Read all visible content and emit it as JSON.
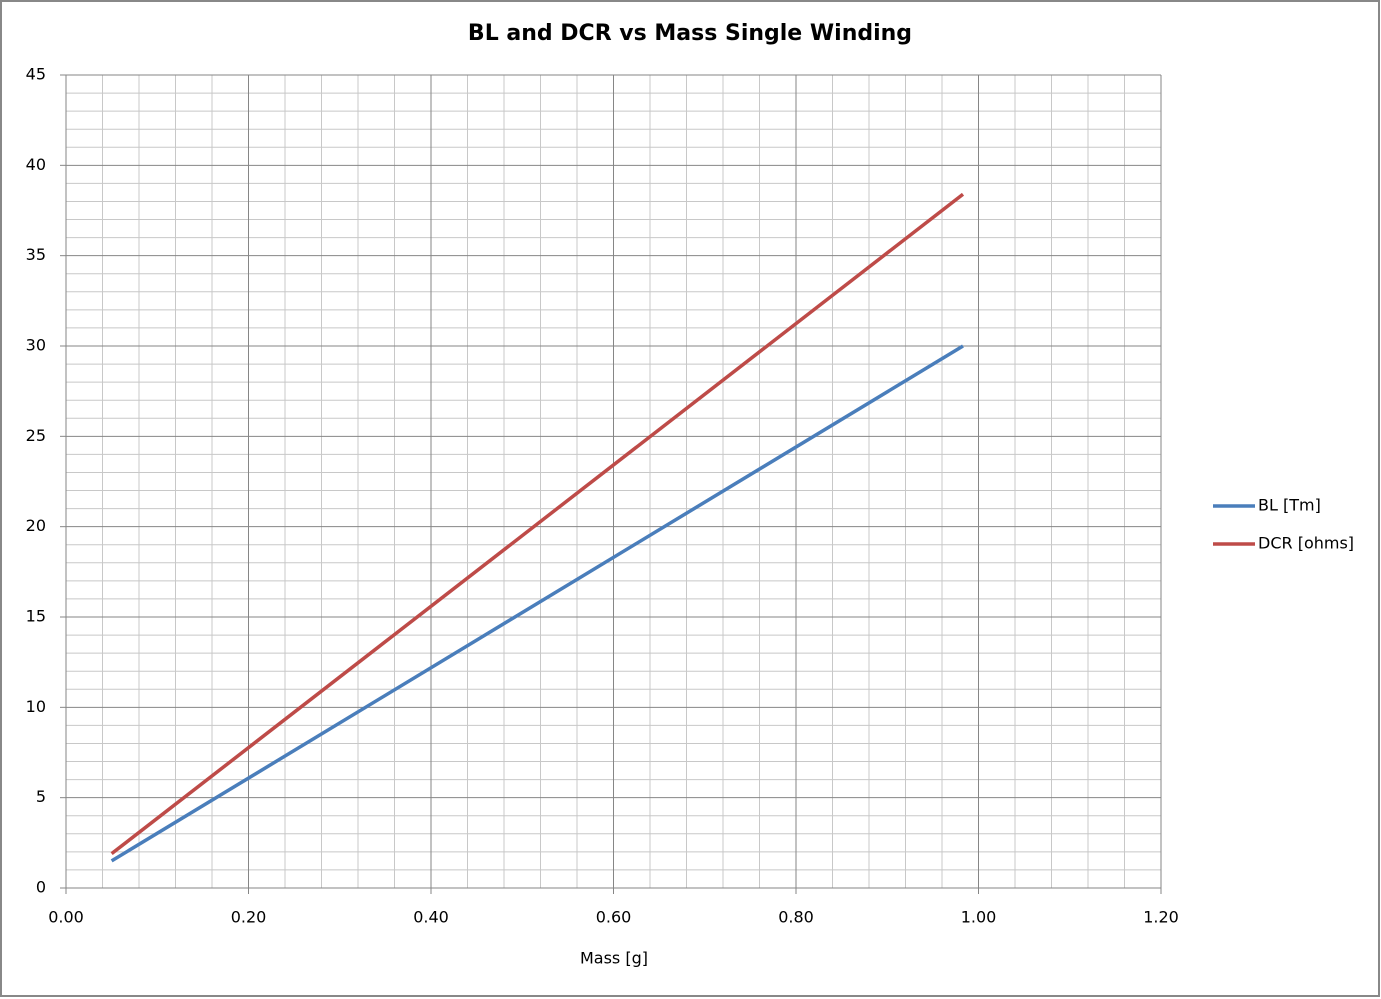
{
  "chart_data": {
    "type": "line",
    "title": "BL and DCR vs Mass Single Winding",
    "x_label": "Mass [g]",
    "x": [
      0.05,
      0.983
    ],
    "series": [
      {
        "name": "BL [Tm]",
        "color": "#4a7ebb",
        "values": [
          1.5,
          30.0
        ]
      },
      {
        "name": "DCR [ohms]",
        "color": "#be4b48",
        "values": [
          1.9,
          38.4
        ]
      }
    ],
    "xlim": [
      0,
      1.2
    ],
    "xticks": [
      {
        "value": 0,
        "label": "0.00"
      },
      {
        "value": 0.2,
        "label": "0.20"
      },
      {
        "value": 0.4,
        "label": "0.40"
      },
      {
        "value": 0.6,
        "label": "0.60"
      },
      {
        "value": 0.8,
        "label": "0.80"
      },
      {
        "value": 1.0,
        "label": "1.00"
      },
      {
        "value": 1.2,
        "label": "1.20"
      }
    ],
    "ylim": [
      0,
      45
    ],
    "yticks": [
      0,
      5,
      10,
      15,
      20,
      25,
      30,
      35,
      40,
      45
    ],
    "grid": true,
    "minor_per_major": {
      "x": 5,
      "y": 5
    },
    "legend": "right"
  }
}
